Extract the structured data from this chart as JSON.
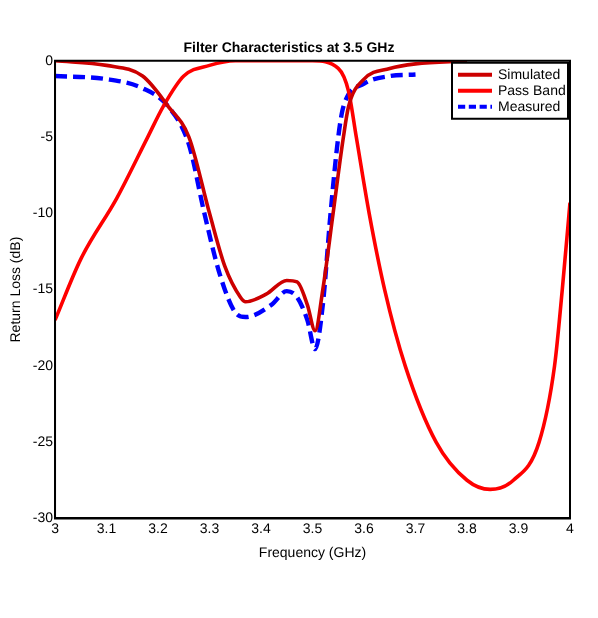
{
  "chart_data": {
    "type": "line",
    "title": "Filter Characteristics at 3.5 GHz",
    "xlabel": "Frequency (GHz)",
    "ylabel": "Return Loss (dB)",
    "xlim": [
      3,
      4
    ],
    "xticks": [
      3,
      {
        "value": 3.1,
        "label": "3.1"
      },
      {
        "value": 3.2,
        "label": "3.2"
      },
      {
        "value": 3.3,
        "label": "3.3"
      },
      {
        "value": 3.4,
        "label": "3.4"
      },
      {
        "value": 3.5,
        "label": "3.5"
      },
      {
        "value": 3.6,
        "label": "3.6"
      },
      {
        "value": 3.7,
        "label": "3.7"
      },
      {
        "value": 3.8,
        "label": "3.8"
      },
      {
        "value": 3.9,
        "label": "3.9"
      },
      4
    ],
    "ylim": [
      -30,
      0
    ],
    "yticks": [
      -30,
      -25,
      -20,
      -15,
      -10,
      -5,
      0
    ],
    "grid": false,
    "legend": "top right",
    "marker": "none",
    "series": [
      {
        "name": "Simulated",
        "color": "#cc0000",
        "line_style": "solid",
        "x": [
          3,
          3.1,
          3.17,
          3.22,
          3.26,
          3.3,
          3.33,
          3.36,
          3.37,
          3.41,
          3.45,
          3.47,
          3.49,
          3.505,
          3.52,
          3.54,
          3.56,
          3.57,
          3.6,
          3.65,
          3.7,
          3.8
        ],
        "values": [
          0,
          -0.3,
          -1,
          -3,
          -5,
          -10,
          -13.5,
          -15.5,
          -15.8,
          -15.3,
          -14.4,
          -14.5,
          -16,
          -17.7,
          -15,
          -10,
          -5,
          -3,
          -1.2,
          -0.5,
          -0.2,
          0
        ]
      },
      {
        "name": "Pass Band",
        "color": "#ff0000",
        "line_style": "solid",
        "x": [
          3,
          3.05,
          3.12,
          3.18,
          3.21,
          3.25,
          3.3,
          3.35,
          3.5,
          3.55,
          3.57,
          3.585,
          3.61,
          3.64,
          3.68,
          3.74,
          3.8,
          3.845,
          3.89,
          3.94,
          3.97,
          3.985,
          4
        ],
        "values": [
          -17,
          -13,
          -9,
          -5,
          -3,
          -1,
          -0.3,
          0,
          0,
          -0.5,
          -2,
          -5,
          -10,
          -15,
          -20,
          -25,
          -27.5,
          -28.1,
          -27.5,
          -25,
          -20,
          -15,
          -9.3
        ]
      },
      {
        "name": "Measured",
        "color": "#0000ff",
        "line_style": "dashed",
        "x": [
          3,
          3.1,
          3.17,
          3.22,
          3.26,
          3.29,
          3.32,
          3.35,
          3.37,
          3.42,
          3.45,
          3.47,
          3.49,
          3.505,
          3.52,
          3.535,
          3.55,
          3.56,
          3.6,
          3.65,
          3.7
        ],
        "values": [
          -1,
          -1.2,
          -1.8,
          -3,
          -5.5,
          -10,
          -14,
          -16.5,
          -16.8,
          -16,
          -15.1,
          -15.5,
          -17,
          -18.9,
          -16,
          -10,
          -5,
          -3,
          -1.5,
          -1,
          -0.9
        ]
      }
    ]
  }
}
